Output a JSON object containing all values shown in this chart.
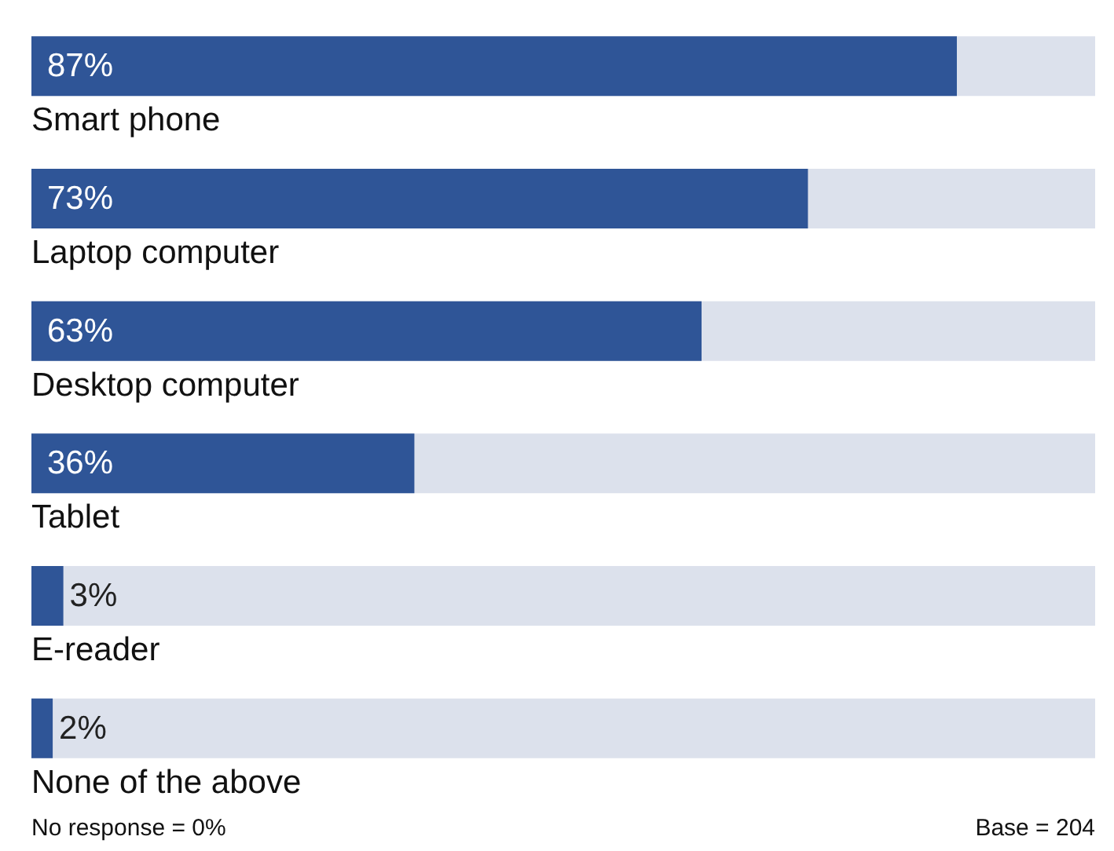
{
  "chart_data": {
    "type": "bar",
    "orientation": "horizontal",
    "categories": [
      "Smart phone",
      "Laptop computer",
      "Desktop computer",
      "Tablet",
      "E-reader",
      "None of the above"
    ],
    "values": [
      87,
      73,
      63,
      36,
      3,
      2
    ],
    "value_labels": [
      "87%",
      "73%",
      "63%",
      "36%",
      "3%",
      "2%"
    ],
    "color": "#2f5597",
    "xlim": [
      0,
      100
    ],
    "tick_labels": "y",
    "annotations": [
      "No response = 0%",
      "Base = 204"
    ]
  }
}
